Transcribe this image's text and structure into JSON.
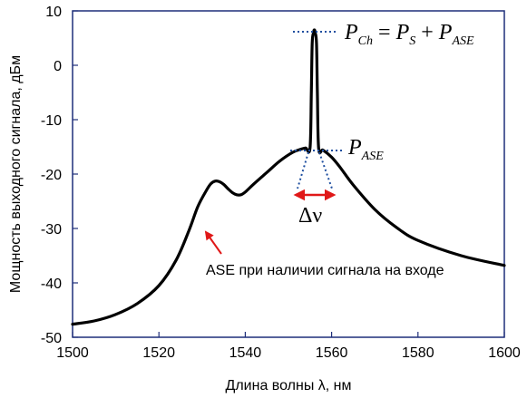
{
  "chart_data": {
    "type": "line",
    "xlabel": "Длина волны λ, нм",
    "ylabel": "Мощность выходного  сигнала, дБм",
    "xlim": [
      1500,
      1600
    ],
    "ylim": [
      -50,
      10
    ],
    "xticks": [
      1500,
      1520,
      1540,
      1560,
      1580,
      1600
    ],
    "yticks": [
      10,
      0,
      -10,
      -20,
      -30,
      -40,
      -50
    ],
    "grid": false,
    "series": [
      {
        "x": [
          1500,
          1505,
          1510,
          1515,
          1520,
          1524,
          1527,
          1529,
          1531,
          1532,
          1533,
          1534,
          1535,
          1536,
          1537,
          1538,
          1539,
          1540,
          1542,
          1545,
          1548,
          1551,
          1553,
          1554,
          1555,
          1555.3,
          1555.5,
          1555.8,
          1556,
          1556.2,
          1556.5,
          1556.7,
          1557,
          1558,
          1560,
          1562,
          1565,
          1570,
          1575,
          1580,
          1590,
          1600
        ],
        "y": [
          -47.6,
          -47.0,
          -45.8,
          -43.8,
          -40.5,
          -35.8,
          -30.3,
          -26.0,
          -23.0,
          -21.8,
          -21.3,
          -21.4,
          -21.9,
          -22.7,
          -23.4,
          -23.8,
          -23.8,
          -23.3,
          -21.8,
          -19.7,
          -17.6,
          -16.0,
          -15.4,
          -15.2,
          -15.2,
          -5.0,
          4.0,
          6.0,
          6.5,
          6.0,
          4.0,
          -5.0,
          -15.3,
          -15.6,
          -16.9,
          -18.8,
          -22.0,
          -26.5,
          -29.8,
          -32.2,
          -35.0,
          -36.8
        ]
      }
    ],
    "annotations": {
      "pch_main": "P",
      "pch_sub": "Ch",
      "eq": " = ",
      "ps_main": "P",
      "ps_sub": "S",
      "plus": " + ",
      "pase_main": "P",
      "pase_sub": "ASE",
      "pase2_main": "P",
      "pase2_sub": "ASE",
      "delta_nu": "Δν",
      "ase_note": "ASE при наличии сигнала на входе"
    },
    "colors": {
      "curve": "#000000",
      "frame": "#1f2f7a",
      "dotted": "#1f4fa0",
      "arrow": "#e01818"
    }
  }
}
